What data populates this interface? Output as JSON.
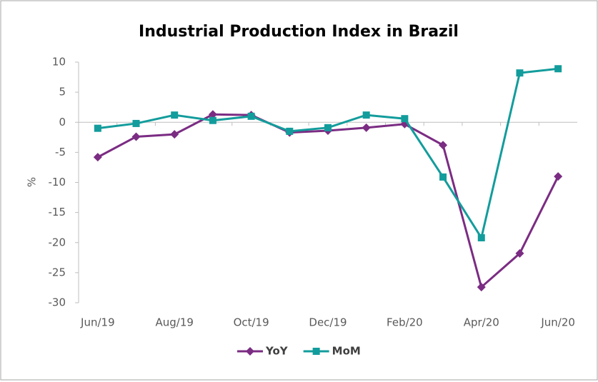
{
  "chart_data": {
    "type": "line",
    "title": "Industrial Production Index in Brazil",
    "y_label": "%",
    "categories": [
      "Jun/19",
      null,
      "Aug/19",
      null,
      "Oct/19",
      null,
      "Dec/19",
      null,
      "Feb/20",
      null,
      "Apr/20",
      null,
      "Jun/20"
    ],
    "series": [
      {
        "name": "YoY",
        "color": "#7b2c83",
        "marker": "diamond",
        "values": [
          -5.8,
          -2.4,
          -2.0,
          1.3,
          1.2,
          -1.7,
          -1.4,
          -0.9,
          -0.3,
          -3.8,
          -27.4,
          -21.8,
          -9.0
        ]
      },
      {
        "name": "MoM",
        "color": "#139c9c",
        "marker": "square",
        "values": [
          -1.0,
          -0.2,
          1.2,
          0.3,
          1.0,
          -1.5,
          -0.9,
          1.2,
          0.6,
          -9.1,
          -19.2,
          8.2,
          8.9
        ]
      }
    ],
    "ylim": [
      -30,
      10
    ],
    "yticks": [
      -30,
      -25,
      -20,
      -15,
      -10,
      -5,
      0,
      5,
      10
    ],
    "grid": false,
    "legend": "bottom"
  }
}
